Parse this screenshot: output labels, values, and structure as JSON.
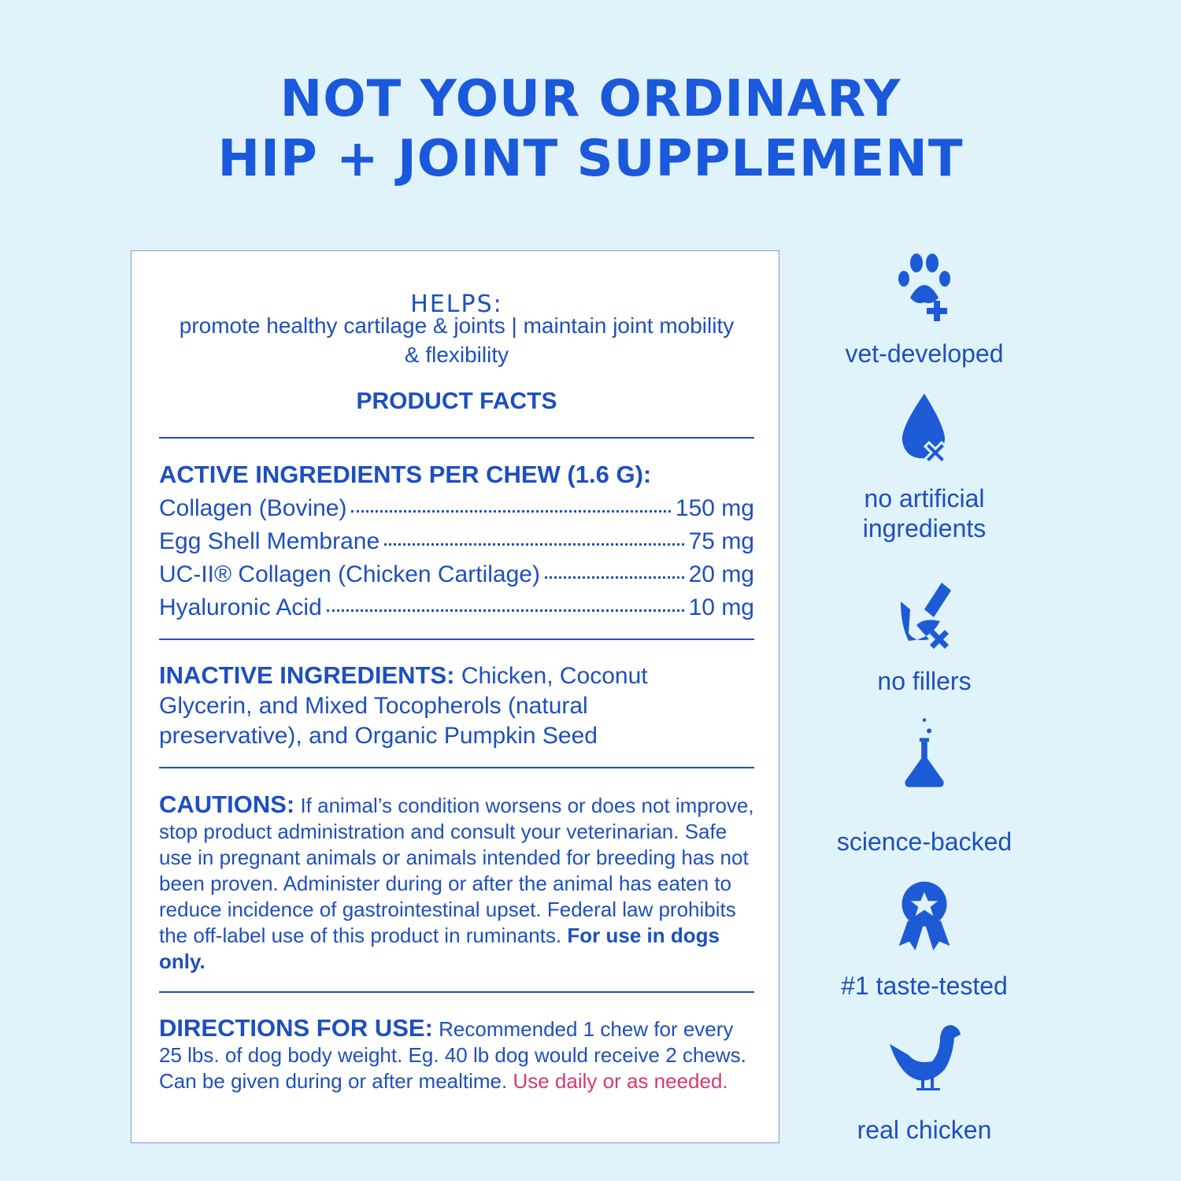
{
  "title": {
    "line1": "NOT YOUR ORDINARY",
    "line2": "HIP + JOINT SUPPLEMENT"
  },
  "facts": {
    "helps_heading": "HELPS:",
    "helps_text": "promote healthy cartilage & joints | maintain joint mobility & flexibility",
    "product_facts": "PRODUCT FACTS",
    "active_heading": "ACTIVE INGREDIENTS PER CHEW (1.6 G):",
    "active": [
      {
        "name": "Collagen (Bovine)",
        "amount": "150 mg"
      },
      {
        "name": "Egg Shell Membrane",
        "amount": "75 mg"
      },
      {
        "name": "UC-II® Collagen (Chicken Cartilage)",
        "amount": "20 mg"
      },
      {
        "name": "Hyaluronic Acid",
        "amount": "10 mg"
      }
    ],
    "inactive_label": "INACTIVE INGREDIENTS:",
    "inactive_text": "Chicken, Coconut Glycerin, and Mixed Tocopherols (natural preservative), and Organic Pumpkin Seed",
    "cautions_label": "CAUTIONS:",
    "cautions_text": "If animal’s condition worsens or does not improve, stop product administration and consult your veterinarian. Safe use in pregnant animals or animals intended for breeding has not been proven. Administer during or after the animal has eaten to reduce incidence of gastrointestinal upset. Federal law prohibits the off-label use of this product in ruminants.",
    "cautions_bold": "For use in dogs only.",
    "directions_label": "DIRECTIONS FOR USE:",
    "directions_text": "Recommended 1 chew for every 25 lbs. of dog body weight. Eg. 40 lb dog would receive 2 chews. Can be given during or after mealtime.",
    "directions_highlight": "Use daily or as needed."
  },
  "features": [
    {
      "icon": "paw-plus-icon",
      "label": "vet-developed"
    },
    {
      "icon": "drop-x-icon",
      "label": "no artificial ingredients"
    },
    {
      "icon": "corn-x-icon",
      "label": "no fillers"
    },
    {
      "icon": "flask-icon",
      "label": "science-backed"
    },
    {
      "icon": "award-ribbon-icon",
      "label": "#1 taste-tested"
    },
    {
      "icon": "chicken-icon",
      "label": "real chicken"
    }
  ],
  "colors": {
    "background": "#e0f3fa",
    "title": "#1a58dc",
    "text": "#1d4fbf",
    "highlight": "#d43a6e"
  }
}
